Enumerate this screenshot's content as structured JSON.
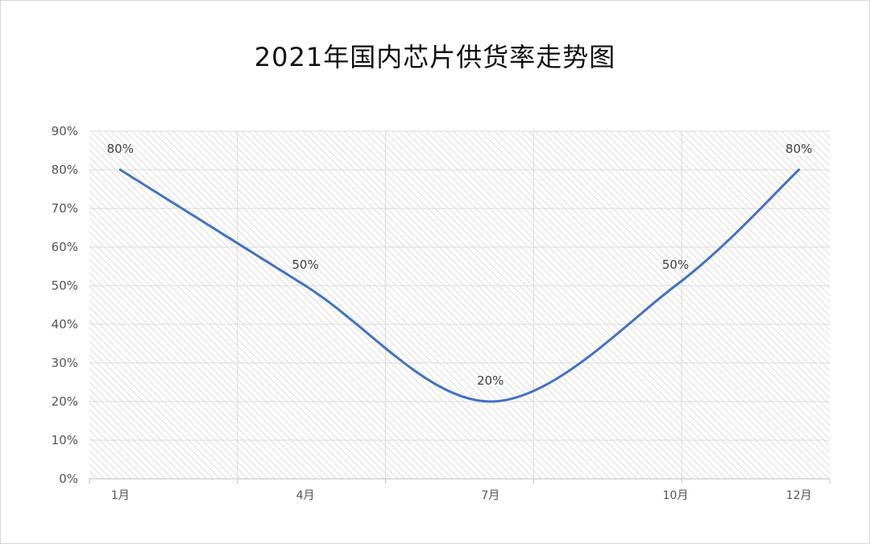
{
  "chart_data": {
    "type": "line",
    "title": "2021年国内芯片供货率走势图",
    "xlabel": "",
    "ylabel": "",
    "categories": [
      "1月",
      "4月",
      "7月",
      "10月",
      "12月"
    ],
    "series": [
      {
        "values": [
          80,
          50,
          20,
          50,
          80
        ]
      }
    ],
    "data_labels": [
      "80%",
      "50%",
      "20%",
      "50%",
      "80%"
    ],
    "ylim": [
      0,
      90
    ],
    "yticks": [
      0,
      10,
      20,
      30,
      40,
      50,
      60,
      70,
      80,
      90
    ],
    "ytick_labels": [
      "0%",
      "10%",
      "20%",
      "30%",
      "40%",
      "50%",
      "60%",
      "70%",
      "80%",
      "90%"
    ],
    "grid": true,
    "smooth": true,
    "line_color": "#4472c4",
    "background_pattern": "diagonal-hatch"
  }
}
